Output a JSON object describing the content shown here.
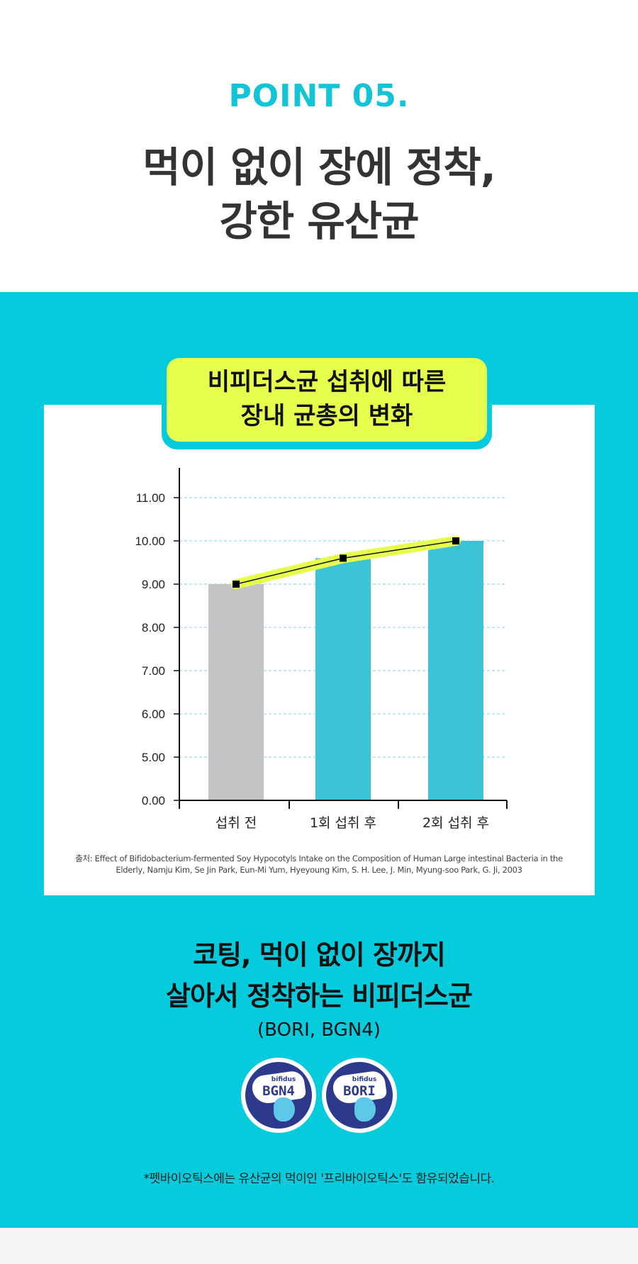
{
  "header": {
    "point_label": "POINT 05.",
    "headline_line1": "먹이 없이 장에 정착,",
    "headline_line2": "강한 유산균"
  },
  "badge": {
    "line1": "비피더스균 섭취에 따른",
    "line2": "장내 균총의 변화"
  },
  "colors": {
    "accent": "#06cbdc",
    "highlight": "#e6ff4d",
    "bar_before": "#c5c3c6",
    "bar_after": "#3cc3d6",
    "grid": "#7fd3e0"
  },
  "chart_data": {
    "type": "bar",
    "categories": [
      "섭취 전",
      "1회 섭취 후",
      "2회 섭취 후"
    ],
    "values": [
      9.0,
      9.6,
      10.0
    ],
    "y_ticks": [
      "0.00",
      "5.00",
      "6.00",
      "7.00",
      "8.00",
      "9.00",
      "10.00",
      "11.00"
    ],
    "ylim": [
      0,
      11
    ],
    "grid": true,
    "overlay_line": true,
    "title": "",
    "xlabel": "",
    "ylabel": ""
  },
  "source": {
    "line1": "출처: Effect of Bifidobacterium-fermented Soy Hypocotyls Intake on the Composition of Human Large intestinal Bacteria in the",
    "line2": "Elderly, Namju Kim, Se Jin Park, Eun-Mi Yum, Hyeyoung Kim, S. H. Lee, J. Min, Myung-soo Park, G. Ji, 2003"
  },
  "subheading": {
    "line1": "코팅, 먹이 없이 장까지",
    "line2": "살아서 정착하는 비피더스균",
    "code": "(BORI, BGN4)"
  },
  "logos": [
    {
      "small": "bifidus",
      "name": "BGN4"
    },
    {
      "small": "bifidus",
      "name": "BORI"
    }
  ],
  "footnote": "*펫바이오틱스에는 유산균의 먹이인 '프리바이오틱스'도 함유되었습니다."
}
